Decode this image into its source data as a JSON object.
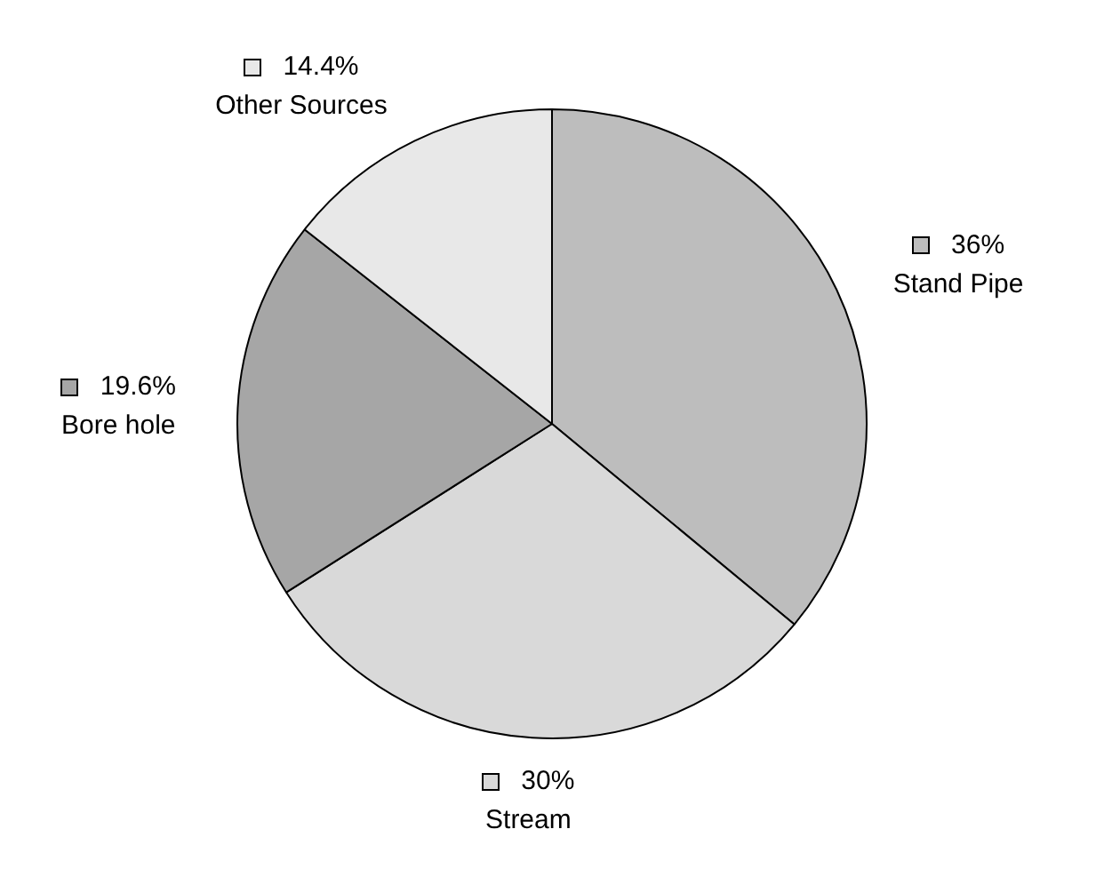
{
  "chart_data": {
    "type": "pie",
    "categories": [
      "Stand Pipe",
      "Stream",
      "Bore hole",
      "Other Sources"
    ],
    "values": [
      36,
      30,
      19.6,
      14.4
    ],
    "value_labels": [
      "36%",
      "30%",
      "19.6%",
      "14.4%"
    ],
    "colors": [
      "#bdbdbd",
      "#d9d9d9",
      "#a6a6a6",
      "#e8e8e8"
    ],
    "legend": "right"
  }
}
